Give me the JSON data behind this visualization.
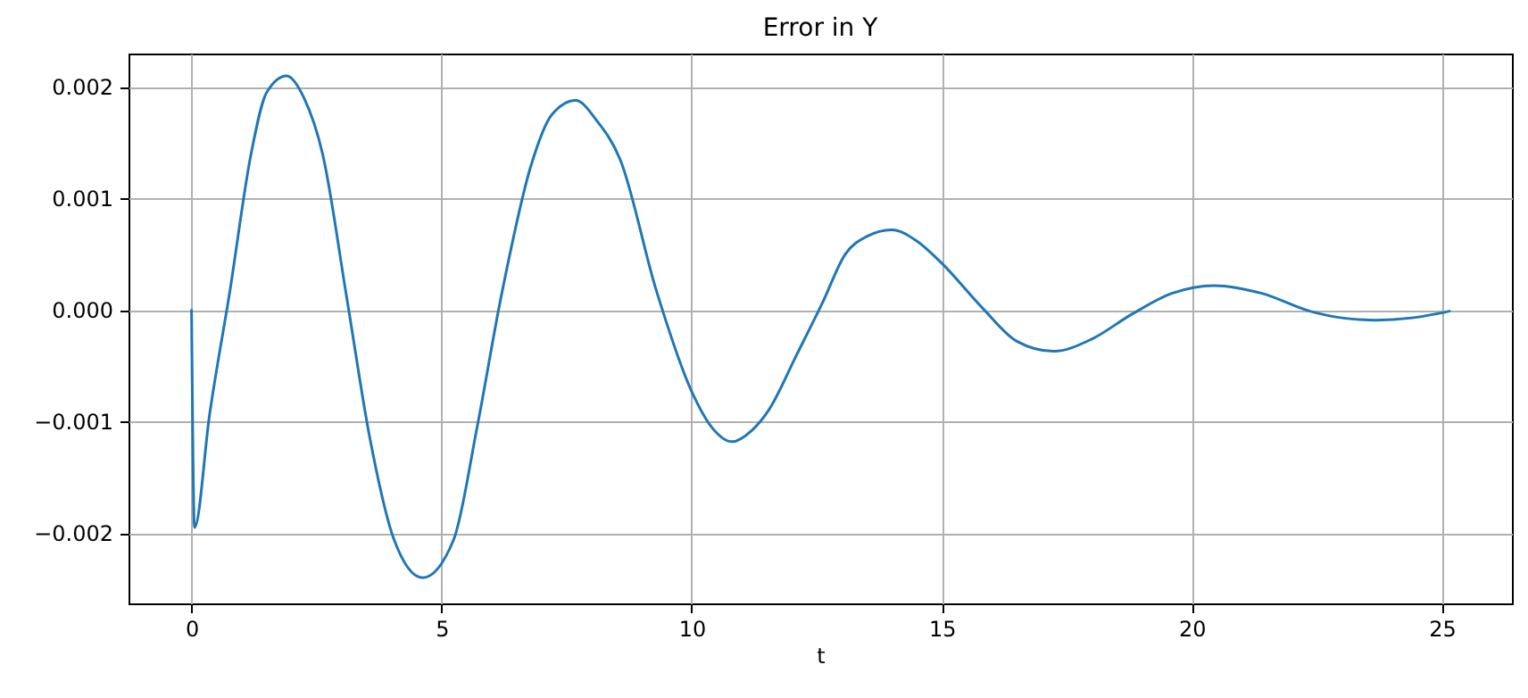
{
  "chart_data": {
    "type": "line",
    "title": "Error in Y",
    "xlabel": "t",
    "x": [
      0,
      0.06,
      0.36,
      0.77,
      1.19,
      1.5,
      1.9,
      2.25,
      2.62,
      3.1,
      3.57,
      4.05,
      4.62,
      5.24,
      5.71,
      6.19,
      6.79,
      7.2,
      7.68,
      8.1,
      8.57,
      9.29,
      10.0,
      10.4,
      10.81,
      11.2,
      11.55,
      12.1,
      12.62,
      13.07,
      13.5,
      14.0,
      14.5,
      15.0,
      15.81,
      16.5,
      17.24,
      18.0,
      18.79,
      19.6,
      20.45,
      21.4,
      22.36,
      23.0,
      23.67,
      24.4,
      25.15
    ],
    "series": [
      {
        "color": "#1f77b4",
        "values": [
          0,
          -0.00195,
          -0.00094,
          0.00018,
          0.0014,
          0.00195,
          0.0021,
          0.0019,
          0.0014,
          0.00012,
          -0.00116,
          -0.00206,
          -0.0024,
          -0.00206,
          -0.00105,
          0.00012,
          0.0013,
          0.00175,
          0.00188,
          0.0017,
          0.00135,
          0.00018,
          -0.00073,
          -0.00105,
          -0.00118,
          -0.00108,
          -0.00089,
          -0.0004,
          7e-05,
          0.0005,
          0.00066,
          0.00072,
          0.00062,
          0.00042,
          2e-05,
          -0.00028,
          -0.00037,
          -0.00026,
          -4e-05,
          0.00015,
          0.00022,
          0.00015,
          -1e-05,
          -7e-05,
          -9e-05,
          -7e-05,
          -1e-05
        ]
      }
    ],
    "xlim": [
      -1.26,
      26.4
    ],
    "ylim": [
      -0.00263,
      0.0023
    ],
    "xticks": [
      0,
      5,
      10,
      15,
      20,
      25
    ],
    "yticks": [
      {
        "value": -0.002,
        "label": "−0.002"
      },
      {
        "value": -0.001,
        "label": "−0.001"
      },
      {
        "value": 0,
        "label": "0.000"
      },
      {
        "value": 0.001,
        "label": "0.001"
      },
      {
        "value": 0.002,
        "label": "0.002"
      }
    ],
    "grid": true,
    "marker": "none",
    "line_style": "solid"
  }
}
